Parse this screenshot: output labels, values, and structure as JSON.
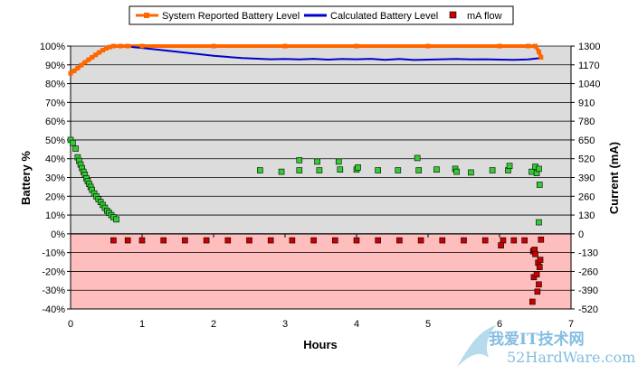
{
  "chart_data": {
    "type": "scatter",
    "title": "",
    "xlabel": "Hours",
    "ylabel": "Battery %",
    "y2label": "Current (mA)",
    "xlim": [
      0,
      7
    ],
    "ylim": [
      -40,
      100
    ],
    "y2lim": [
      -520,
      1300
    ],
    "x_ticks": [
      0,
      1,
      2,
      3,
      4,
      5,
      6,
      7
    ],
    "y_ticks": [
      "100%",
      "90%",
      "80%",
      "70%",
      "60%",
      "50%",
      "40%",
      "30%",
      "20%",
      "10%",
      "0%",
      "-10%",
      "-20%",
      "-30%",
      "-40%"
    ],
    "y2_ticks": [
      "1300",
      "1170",
      "1040",
      "910",
      "780",
      "650",
      "520",
      "390",
      "260",
      "130",
      "0",
      "-130",
      "-260",
      "-390",
      "-520"
    ],
    "grid": true,
    "legend_position": "top",
    "colors": {
      "reported": "#ff6600",
      "calculated": "#0000cc",
      "flow_positive": "#33cc33",
      "flow_negative": "#cc0000",
      "positive_band": "#dcdcdc",
      "negative_band": "#ffbebe"
    },
    "series": [
      {
        "name": "System Reported Battery Level",
        "kind": "line",
        "axis": "left",
        "x": [
          0,
          0.05,
          0.1,
          0.15,
          0.2,
          0.25,
          0.3,
          0.35,
          0.4,
          0.45,
          0.5,
          0.55,
          0.6,
          0.7,
          0.8,
          1.0,
          2.0,
          3.0,
          4.0,
          5.0,
          6.0,
          6.4,
          6.5,
          6.55,
          6.58
        ],
        "y": [
          85.5,
          86.8,
          88.3,
          89.8,
          91.3,
          92.7,
          94,
          95.3,
          96.6,
          97.8,
          98.8,
          99.5,
          100,
          100,
          100,
          100,
          100,
          100,
          100,
          100,
          100,
          100,
          100,
          97,
          94
        ]
      },
      {
        "name": "Calculated Battery Level",
        "kind": "line",
        "axis": "left",
        "x": [
          0.85,
          1.0,
          1.3,
          1.6,
          2.0,
          2.4,
          2.8,
          3.0,
          3.2,
          3.4,
          3.6,
          3.8,
          4.0,
          4.2,
          4.4,
          4.6,
          4.8,
          5.0,
          5.2,
          5.4,
          5.6,
          5.8,
          6.0,
          6.2,
          6.4,
          6.5,
          6.55
        ],
        "y": [
          99.5,
          99,
          97.8,
          96.5,
          94.8,
          93.6,
          93,
          93.1,
          92.9,
          93.2,
          92.8,
          93.1,
          93,
          93.2,
          92.7,
          93.1,
          92.6,
          92.8,
          93,
          93.1,
          92.9,
          93,
          92.8,
          92.7,
          92.9,
          93.3,
          93.5
        ]
      },
      {
        "name": "mA flow",
        "kind": "scatter",
        "axis": "right",
        "x": [
          0.0,
          0.03,
          0.07,
          0.1,
          0.12,
          0.14,
          0.16,
          0.18,
          0.2,
          0.22,
          0.24,
          0.26,
          0.28,
          0.3,
          0.33,
          0.36,
          0.39,
          0.42,
          0.45,
          0.48,
          0.51,
          0.54,
          0.57,
          0.6,
          0.64,
          2.65,
          2.95,
          3.2,
          3.2,
          3.45,
          3.48,
          3.75,
          3.77,
          4.0,
          4.02,
          4.3,
          4.58,
          4.85,
          4.87,
          5.12,
          5.38,
          5.4,
          5.6,
          5.9,
          6.12,
          6.14,
          6.45,
          6.5,
          6.52,
          6.55,
          6.56,
          0.6,
          0.8,
          1.0,
          1.3,
          1.6,
          1.9,
          2.2,
          2.5,
          2.8,
          3.1,
          3.4,
          3.7,
          4.0,
          4.3,
          4.6,
          4.9,
          5.2,
          5.5,
          5.8,
          6.05,
          6.2,
          6.35,
          6.02,
          6.47,
          6.48,
          6.49,
          6.5,
          6.52,
          6.53,
          6.54,
          6.55,
          6.56,
          6.57,
          6.58,
          6.46,
          6.55
        ],
        "y": [
          650,
          630,
          590,
          530,
          505,
          480,
          455,
          430,
          410,
          385,
          365,
          345,
          325,
          305,
          280,
          260,
          240,
          220,
          200,
          180,
          160,
          145,
          130,
          115,
          100,
          440,
          430,
          510,
          440,
          500,
          440,
          500,
          445,
          445,
          460,
          440,
          440,
          525,
          440,
          445,
          450,
          430,
          425,
          440,
          440,
          470,
          430,
          465,
          420,
          450,
          340,
          -45,
          -45,
          -45,
          -45,
          -45,
          -45,
          -45,
          -45,
          -45,
          -45,
          -45,
          -45,
          -45,
          -45,
          -45,
          -45,
          -45,
          -45,
          -45,
          -45,
          -45,
          -45,
          -80,
          -120,
          -300,
          -110,
          -140,
          -280,
          -400,
          -200,
          -350,
          -230,
          -180,
          -40,
          -470,
          80
        ]
      }
    ],
    "watermark": "我爱IT技术网"
  }
}
